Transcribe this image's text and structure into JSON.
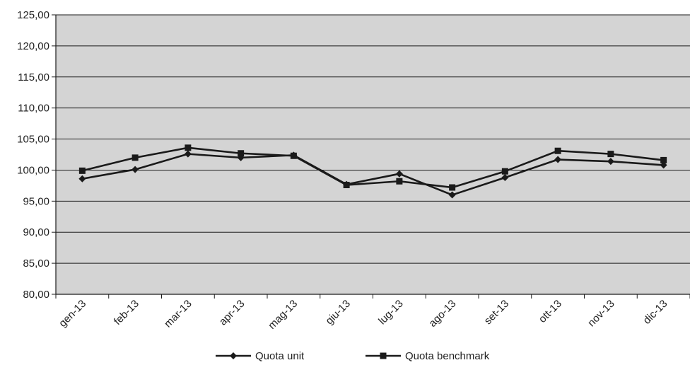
{
  "chart_data": {
    "type": "line",
    "categories": [
      "gen-13",
      "feb-13",
      "mar-13",
      "apr-13",
      "mag-13",
      "giu-13",
      "lug-13",
      "ago-13",
      "set-13",
      "ott-13",
      "nov-13",
      "dic-13"
    ],
    "y_tick_labels": [
      "80,00",
      "85,00",
      "90,00",
      "95,00",
      "100,00",
      "105,00",
      "110,00",
      "115,00",
      "120,00",
      "125,00"
    ],
    "ylim": [
      80,
      125
    ],
    "y_tick_step": 5,
    "grid": true,
    "legend_position": "bottom",
    "series": [
      {
        "name": "Quota unit",
        "marker": "diamond",
        "values": [
          98.6,
          100.1,
          102.6,
          102.0,
          102.4,
          97.7,
          99.4,
          96.0,
          98.8,
          101.7,
          101.4,
          100.8
        ]
      },
      {
        "name": "Quota benchmark",
        "marker": "square",
        "values": [
          99.9,
          102.0,
          103.6,
          102.7,
          102.3,
          97.6,
          98.2,
          97.2,
          99.8,
          103.1,
          102.6,
          101.6
        ]
      }
    ],
    "colors": {
      "plot_background": "#d4d4d4",
      "line": "#1a1a1a",
      "grid": "#1a1a1a"
    }
  }
}
